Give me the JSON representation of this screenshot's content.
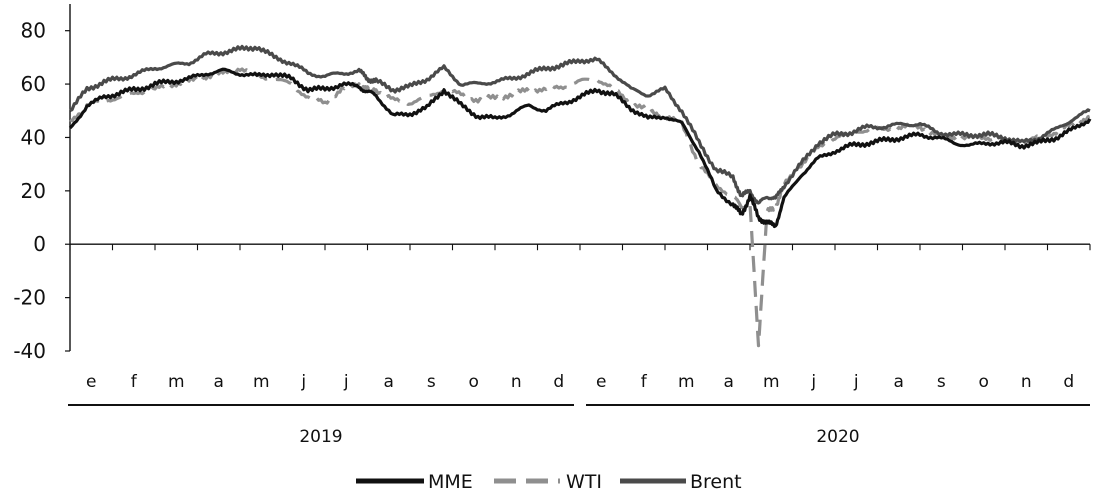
{
  "chart_data": {
    "type": "line",
    "title": "",
    "xlabel": "",
    "ylabel": "",
    "ylim": [
      -40,
      90
    ],
    "yticks": [
      80,
      60,
      40,
      20,
      0,
      -20,
      -40
    ],
    "ytick_labels": [
      "80",
      "60",
      "40",
      "20",
      "0",
      "-20",
      "-40"
    ],
    "x_range": [
      0,
      24
    ],
    "months": [
      "e",
      "f",
      "m",
      "a",
      "m",
      "j",
      "j",
      "a",
      "s",
      "o",
      "n",
      "d",
      "e",
      "f",
      "m",
      "a",
      "m",
      "j",
      "j",
      "a",
      "s",
      "o",
      "n",
      "d"
    ],
    "years": [
      {
        "label": "2019",
        "from": 0,
        "to": 12
      },
      {
        "label": "2020",
        "from": 12,
        "to": 24
      }
    ],
    "legend_position": "bottom",
    "grid": false,
    "series": [
      {
        "name": "MME",
        "color": "#111111",
        "dash": "solid",
        "x": [
          0,
          0.4,
          0.8,
          1.2,
          1.6,
          2.0,
          2.4,
          2.8,
          3.2,
          3.6,
          4.0,
          4.4,
          4.8,
          5.2,
          5.6,
          6.0,
          6.4,
          6.8,
          7.0,
          7.2,
          7.6,
          8.0,
          8.4,
          8.8,
          9.2,
          9.6,
          10.0,
          10.4,
          10.8,
          11.2,
          11.6,
          12.0,
          12.4,
          12.8,
          13.2,
          13.6,
          14.0,
          14.4,
          14.8,
          15.2,
          15.6,
          15.8,
          16.0,
          16.2,
          16.4,
          16.6,
          16.8,
          17.2,
          17.6,
          18.0,
          18.4,
          18.8,
          19.2,
          19.6,
          20.0,
          20.4,
          20.8,
          21.2,
          21.6,
          22.0,
          22.4,
          22.8,
          23.2,
          23.6,
          24.0
        ],
        "values": [
          43,
          52,
          55,
          57,
          58,
          60,
          61,
          62,
          64,
          65,
          64,
          63,
          64,
          62,
          58,
          58,
          60,
          59,
          57,
          56,
          48,
          49,
          51,
          58,
          52,
          48,
          47,
          49,
          52,
          50,
          53,
          55,
          58,
          56,
          51,
          47,
          48,
          45,
          35,
          20,
          15,
          11,
          18,
          10,
          8,
          7,
          17,
          26,
          32,
          35,
          37,
          38,
          39,
          40,
          41,
          40,
          38,
          37,
          38,
          38,
          37,
          38,
          40,
          43,
          47
        ]
      },
      {
        "name": "WTI",
        "color": "#8f8f8f",
        "dash": "dashed",
        "x": [
          0,
          0.4,
          0.8,
          1.2,
          1.6,
          2.0,
          2.4,
          2.8,
          3.2,
          3.6,
          4.0,
          4.4,
          4.8,
          5.2,
          5.6,
          6.0,
          6.4,
          6.8,
          7.0,
          7.2,
          7.6,
          8.0,
          8.4,
          8.8,
          9.2,
          9.6,
          10.0,
          10.4,
          10.8,
          11.2,
          11.6,
          12.0,
          12.4,
          12.8,
          13.2,
          13.6,
          14.0,
          14.4,
          14.8,
          15.2,
          15.6,
          15.8,
          16.0,
          16.2,
          16.4,
          16.6,
          16.8,
          17.2,
          17.6,
          18.0,
          18.4,
          18.8,
          19.2,
          19.6,
          20.0,
          20.4,
          20.8,
          21.2,
          21.6,
          22.0,
          22.4,
          22.8,
          23.2,
          23.6,
          24.0
        ],
        "values": [
          46,
          52,
          54,
          55,
          57,
          58,
          60,
          61,
          63,
          64,
          66,
          63,
          62,
          60,
          55,
          53,
          58,
          60,
          58,
          58,
          54,
          53,
          55,
          58,
          56,
          54,
          55,
          56,
          58,
          58,
          59,
          61,
          62,
          58,
          53,
          50,
          48,
          45,
          30,
          22,
          18,
          14,
          15,
          -38,
          12,
          14,
          22,
          30,
          36,
          40,
          42,
          43,
          43,
          44,
          44,
          41,
          40,
          40,
          40,
          38,
          38,
          40,
          42,
          45,
          48
        ]
      },
      {
        "name": "Brent",
        "color": "#4a4a4a",
        "dash": "solid",
        "x": [
          0,
          0.4,
          0.8,
          1.2,
          1.6,
          2.0,
          2.4,
          2.8,
          3.2,
          3.6,
          4.0,
          4.4,
          4.8,
          5.2,
          5.6,
          6.0,
          6.4,
          6.8,
          7.0,
          7.2,
          7.6,
          8.0,
          8.4,
          8.8,
          9.2,
          9.6,
          10.0,
          10.4,
          10.8,
          11.2,
          11.6,
          12.0,
          12.4,
          12.8,
          13.2,
          13.6,
          14.0,
          14.4,
          14.8,
          15.2,
          15.6,
          15.8,
          16.0,
          16.2,
          16.4,
          16.6,
          16.8,
          17.2,
          17.6,
          18.0,
          18.4,
          18.8,
          19.2,
          19.6,
          20.0,
          20.4,
          20.8,
          21.2,
          21.6,
          22.0,
          22.4,
          22.8,
          23.2,
          23.6,
          24.0
        ],
        "values": [
          50,
          58,
          61,
          62,
          64,
          66,
          67,
          68,
          71,
          72,
          73,
          74,
          70,
          68,
          64,
          63,
          64,
          65,
          62,
          61,
          58,
          59,
          62,
          66,
          60,
          60,
          61,
          62,
          64,
          66,
          67,
          69,
          69,
          64,
          58,
          56,
          58,
          50,
          38,
          28,
          25,
          18,
          20,
          15,
          18,
          17,
          22,
          30,
          38,
          41,
          42,
          44,
          44,
          45,
          45,
          42,
          41,
          41,
          41,
          40,
          38,
          40,
          43,
          47,
          50
        ]
      }
    ]
  }
}
